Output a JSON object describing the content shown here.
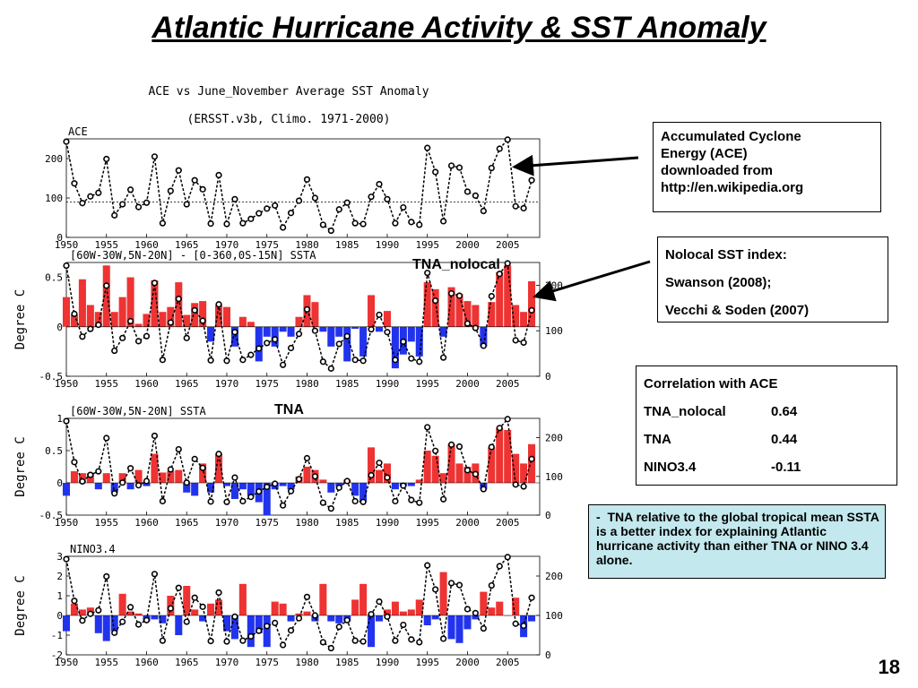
{
  "slide": {
    "title": "Atlantic Hurricane Activity & SST Anomaly",
    "page_number": "18"
  },
  "annotations": {
    "ace_source": [
      "Accumulated Cyclone",
      "Energy (ACE)",
      "downloaded from",
      "http://en.wikipedia.org"
    ],
    "nolocal": [
      "Nolocal SST index:",
      "Swanson (2008);",
      "Vecchi & Soden (2007)"
    ],
    "correlation_title": "Correlation with ACE",
    "correlations": [
      {
        "name": "TNA_nolocal",
        "value": "0.64"
      },
      {
        "name": "TNA",
        "value": "0.44"
      },
      {
        "name": "NINO3.4",
        "value": "-0.11"
      }
    ],
    "note_dash": "-",
    "note": "TNA relative to the global tropical mean SSTA is a better index for explaining Atlantic hurricane activity than either TNA or NINO 3.4 alone."
  },
  "chart_data": [
    {
      "type": "line",
      "title": "ACE vs June_November Average SST Anomaly",
      "subtitle": "(ERSST.v3b, Climo. 1971-2000)",
      "panel_label": "ACE",
      "xlabel": "",
      "ylabel": "",
      "xlim": [
        1950,
        2009
      ],
      "ylim": [
        0,
        250
      ],
      "yticks": [
        0,
        100,
        200
      ],
      "xticks": [
        1950,
        1955,
        1960,
        1965,
        1970,
        1975,
        1980,
        1985,
        1990,
        1995,
        2000,
        2005
      ],
      "reference_line": 90,
      "series": [
        {
          "x": [
            1950,
            1951,
            1952,
            1953,
            1954,
            1955,
            1956,
            1957,
            1958,
            1959,
            1960,
            1961,
            1962,
            1963,
            1964,
            1965,
            1966,
            1967,
            1968,
            1969,
            1970,
            1971,
            1972,
            1973,
            1974,
            1975,
            1976,
            1977,
            1978,
            1979,
            1980,
            1981,
            1982,
            1983,
            1984,
            1985,
            1986,
            1987,
            1988,
            1989,
            1990,
            1991,
            1992,
            1993,
            1994,
            1995,
            1996,
            1997,
            1998,
            1999,
            2000,
            2001,
            2002,
            2003,
            2004,
            2005,
            2006,
            2007,
            2008
          ],
          "values": [
            243,
            137,
            87,
            104,
            113,
            199,
            56,
            84,
            121,
            77,
            88,
            205,
            36,
            118,
            170,
            84,
            145,
            122,
            35,
            158,
            34,
            97,
            36,
            47,
            61,
            73,
            81,
            25,
            62,
            93,
            147,
            100,
            32,
            17,
            71,
            88,
            36,
            34,
            103,
            135,
            97,
            36,
            76,
            39,
            32,
            227,
            166,
            41,
            182,
            177,
            116,
            106,
            67,
            176,
            225,
            248,
            79,
            74,
            145
          ]
        }
      ]
    },
    {
      "type": "bar",
      "panel_label": "[60W-30W,5N-20N] - [0-360,0S-15N] SSTA",
      "label": "TNA_nolocal",
      "ylabel": "Degree C",
      "ylim": [
        -0.5,
        0.65
      ],
      "yticks": [
        -0.5,
        0,
        0.5
      ],
      "right_axis": {
        "ylim": [
          0,
          250
        ],
        "yticks": [
          0,
          100,
          200
        ]
      },
      "x": [
        1950,
        1951,
        1952,
        1953,
        1954,
        1955,
        1956,
        1957,
        1958,
        1959,
        1960,
        1961,
        1962,
        1963,
        1964,
        1965,
        1966,
        1967,
        1968,
        1969,
        1970,
        1971,
        1972,
        1973,
        1974,
        1975,
        1976,
        1977,
        1978,
        1979,
        1980,
        1981,
        1982,
        1983,
        1984,
        1985,
        1986,
        1987,
        1988,
        1989,
        1990,
        1991,
        1992,
        1993,
        1994,
        1995,
        1996,
        1997,
        1998,
        1999,
        2000,
        2001,
        2002,
        2003,
        2004,
        2005,
        2006,
        2007,
        2008
      ],
      "values": [
        0.3,
        0.12,
        0.48,
        0.22,
        0.15,
        0.62,
        0.15,
        0.3,
        0.5,
        0.03,
        0.13,
        0.47,
        0.15,
        0.2,
        0.45,
        0.12,
        0.24,
        0.26,
        -0.15,
        0.22,
        0.2,
        -0.2,
        0.1,
        0.05,
        -0.35,
        -0.1,
        -0.2,
        -0.05,
        -0.1,
        0.1,
        0.32,
        0.25,
        -0.05,
        -0.2,
        -0.1,
        -0.35,
        -0.02,
        -0.3,
        0.32,
        -0.05,
        0.16,
        -0.42,
        -0.28,
        -0.15,
        -0.3,
        0.45,
        0.38,
        -0.1,
        0.4,
        0.33,
        0.26,
        0.22,
        -0.2,
        0.25,
        0.55,
        0.62,
        0.22,
        0.15,
        0.46
      ],
      "line": {
        "name": "ACE",
        "values": [
          243,
          137,
          87,
          104,
          113,
          199,
          56,
          84,
          121,
          77,
          88,
          205,
          36,
          118,
          170,
          84,
          145,
          122,
          35,
          158,
          34,
          97,
          36,
          47,
          61,
          73,
          81,
          25,
          62,
          93,
          147,
          100,
          32,
          17,
          71,
          88,
          36,
          34,
          103,
          135,
          97,
          36,
          76,
          39,
          32,
          227,
          166,
          41,
          182,
          177,
          116,
          106,
          67,
          176,
          225,
          248,
          79,
          74,
          145
        ]
      }
    },
    {
      "type": "bar",
      "panel_label": "[60W-30W,5N-20N] SSTA",
      "label": "TNA",
      "ylabel": "Degree C",
      "ylim": [
        -0.5,
        1.0
      ],
      "yticks": [
        -0.5,
        0,
        0.5,
        1
      ],
      "right_axis": {
        "ylim": [
          0,
          250
        ],
        "yticks": [
          0,
          100,
          200
        ]
      },
      "x": [
        1950,
        1951,
        1952,
        1953,
        1954,
        1955,
        1956,
        1957,
        1958,
        1959,
        1960,
        1961,
        1962,
        1963,
        1964,
        1965,
        1966,
        1967,
        1968,
        1969,
        1970,
        1971,
        1972,
        1973,
        1974,
        1975,
        1976,
        1977,
        1978,
        1979,
        1980,
        1981,
        1982,
        1983,
        1984,
        1985,
        1986,
        1987,
        1988,
        1989,
        1990,
        1991,
        1992,
        1993,
        1994,
        1995,
        1996,
        1997,
        1998,
        1999,
        2000,
        2001,
        2002,
        2003,
        2004,
        2005,
        2006,
        2007,
        2008
      ],
      "values": [
        -0.2,
        0.18,
        0.15,
        0.15,
        -0.1,
        0.15,
        -0.15,
        0.15,
        -0.1,
        0.2,
        -0.05,
        0.45,
        0.16,
        0.18,
        0.2,
        -0.15,
        -0.2,
        0.3,
        -0.15,
        0.45,
        -0.05,
        -0.25,
        -0.1,
        -0.2,
        -0.3,
        -0.5,
        -0.1,
        -0.05,
        -0.1,
        0.1,
        0.25,
        0.2,
        0.05,
        -0.15,
        -0.05,
        0.05,
        -0.2,
        -0.3,
        0.55,
        0.2,
        0.3,
        -0.1,
        -0.05,
        -0.05,
        0.05,
        0.5,
        0.42,
        0.15,
        0.6,
        0.3,
        0.25,
        0.3,
        -0.1,
        0.55,
        0.85,
        0.82,
        0.45,
        0.3,
        0.6
      ],
      "line": {
        "name": "ACE",
        "values": [
          243,
          137,
          87,
          104,
          113,
          199,
          56,
          84,
          121,
          77,
          88,
          205,
          36,
          118,
          170,
          84,
          145,
          122,
          35,
          158,
          34,
          97,
          36,
          47,
          61,
          73,
          81,
          25,
          62,
          93,
          147,
          100,
          32,
          17,
          71,
          88,
          36,
          34,
          103,
          135,
          97,
          36,
          76,
          39,
          32,
          227,
          166,
          41,
          182,
          177,
          116,
          106,
          67,
          176,
          225,
          248,
          79,
          74,
          145
        ]
      }
    },
    {
      "type": "bar",
      "panel_label": "NINO3.4",
      "ylabel": "Degree C",
      "ylim": [
        -2,
        3
      ],
      "yticks": [
        -2,
        -1,
        0,
        1,
        2,
        3
      ],
      "right_axis": {
        "ylim": [
          0,
          250
        ],
        "yticks": [
          0,
          100,
          200
        ]
      },
      "x": [
        1950,
        1951,
        1952,
        1953,
        1954,
        1955,
        1956,
        1957,
        1958,
        1959,
        1960,
        1961,
        1962,
        1963,
        1964,
        1965,
        1966,
        1967,
        1968,
        1969,
        1970,
        1971,
        1972,
        1973,
        1974,
        1975,
        1976,
        1977,
        1978,
        1979,
        1980,
        1981,
        1982,
        1983,
        1984,
        1985,
        1986,
        1987,
        1988,
        1989,
        1990,
        1991,
        1992,
        1993,
        1994,
        1995,
        1996,
        1997,
        1998,
        1999,
        2000,
        2001,
        2002,
        2003,
        2004,
        2005,
        2006,
        2007,
        2008
      ],
      "values": [
        -0.8,
        0.6,
        0.3,
        0.4,
        -0.9,
        -1.3,
        -0.8,
        1.1,
        0.2,
        0.1,
        -0.3,
        -0.2,
        -0.4,
        1.0,
        -1.0,
        1.5,
        0.3,
        -0.3,
        0.6,
        0.8,
        -0.8,
        -1.2,
        1.6,
        -1.6,
        -0.9,
        -1.6,
        0.7,
        0.6,
        -0.3,
        0.1,
        0.2,
        -0.3,
        1.6,
        -0.3,
        -0.4,
        -0.3,
        0.8,
        1.6,
        -1.6,
        -0.3,
        0.3,
        0.7,
        0.2,
        0.3,
        0.8,
        -0.5,
        -0.2,
        2.2,
        -1.2,
        -1.4,
        -0.7,
        -0.2,
        1.2,
        0.4,
        0.7,
        0.0,
        0.9,
        -1.1,
        -0.3
      ],
      "line": {
        "name": "ACE",
        "values": [
          243,
          137,
          87,
          104,
          113,
          199,
          56,
          84,
          121,
          77,
          88,
          205,
          36,
          118,
          170,
          84,
          145,
          122,
          35,
          158,
          34,
          97,
          36,
          47,
          61,
          73,
          81,
          25,
          62,
          93,
          147,
          100,
          32,
          17,
          71,
          88,
          36,
          34,
          103,
          135,
          97,
          36,
          76,
          39,
          32,
          227,
          166,
          41,
          182,
          177,
          116,
          106,
          67,
          176,
          225,
          248,
          79,
          74,
          145
        ]
      }
    }
  ],
  "colors": {
    "positive": "#ee3333",
    "negative": "#2233ee",
    "line": "#000000",
    "marker_fill": "#ffffff",
    "note_bg": "#c3e8ed"
  }
}
